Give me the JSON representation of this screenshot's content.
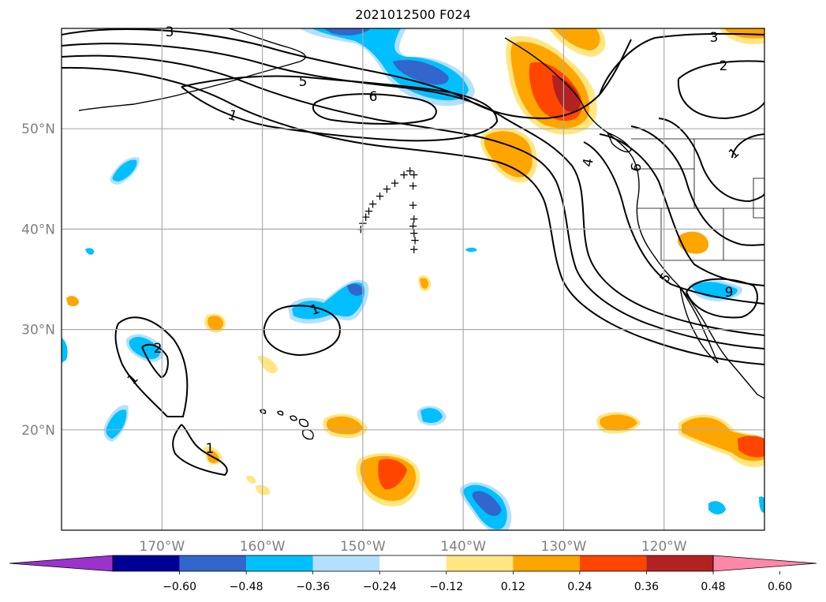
{
  "title": "2021012500 F024",
  "map": {
    "lon_range": [
      -180,
      -110
    ],
    "lat_range": [
      10,
      60
    ],
    "lon_ticks": [
      {
        "value": -170,
        "label": "170°W"
      },
      {
        "value": -160,
        "label": "160°W"
      },
      {
        "value": -150,
        "label": "150°W"
      },
      {
        "value": -140,
        "label": "140°W"
      },
      {
        "value": -130,
        "label": "130°W"
      },
      {
        "value": -120,
        "label": "120°W"
      }
    ],
    "lat_ticks": [
      {
        "value": 20,
        "label": "20°N"
      },
      {
        "value": 30,
        "label": "30°N"
      },
      {
        "value": 40,
        "label": "40°N"
      },
      {
        "value": 50,
        "label": "50°N"
      }
    ],
    "tick_label_color": "#808080",
    "grid": true
  },
  "colorbar": {
    "colors": [
      "#9933cc",
      "#000099",
      "#3366cc",
      "#00bfff",
      "#b3e0ff",
      "#ffffff",
      "#ffe680",
      "#ffa500",
      "#ff4500",
      "#b22222",
      "#ff88aa"
    ],
    "tick_labels": [
      "−0.60",
      "−0.48",
      "−0.36",
      "−0.24",
      "−0.12",
      "0.12",
      "0.24",
      "0.36",
      "0.48",
      "0.60"
    ],
    "extend": "both"
  },
  "contour_labels": [
    "3",
    "5",
    "6",
    "1",
    "3",
    "2",
    "4",
    "6",
    "1",
    "5",
    "9",
    "1",
    "2",
    "1",
    "1"
  ],
  "markers": {
    "symbol": "+",
    "points": [
      [
        -150.2,
        40.0
      ],
      [
        -150.0,
        40.6
      ],
      [
        -149.7,
        41.2
      ],
      [
        -149.4,
        41.8
      ],
      [
        -149.0,
        42.5
      ],
      [
        -148.3,
        43.3
      ],
      [
        -147.6,
        44.0
      ],
      [
        -146.8,
        44.6
      ],
      [
        -145.9,
        45.4
      ],
      [
        -145.3,
        45.8
      ],
      [
        -144.9,
        45.4
      ],
      [
        -145.0,
        44.3
      ],
      [
        -145.0,
        42.4
      ],
      [
        -144.9,
        41.0
      ],
      [
        -145.0,
        40.3
      ],
      [
        -144.9,
        39.6
      ],
      [
        -144.8,
        38.9
      ],
      [
        -144.9,
        38.0
      ]
    ]
  },
  "legend_colors": {
    "positive": "#ffa500",
    "negative": "#00bfff"
  }
}
